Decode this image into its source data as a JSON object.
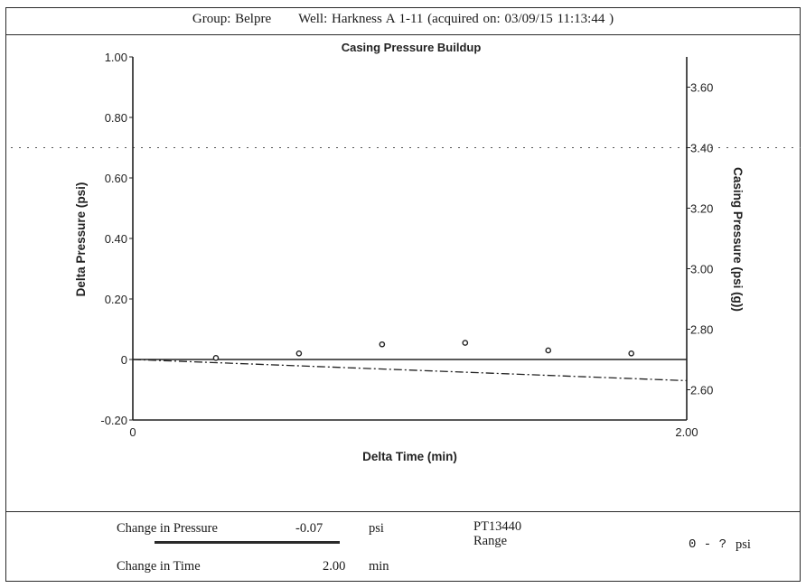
{
  "header": {
    "group": "Group: Belpre",
    "well": "Well: Harkness A 1-11 (acquired on: 03/09/15 11:13:44 )"
  },
  "chart_data": {
    "type": "line",
    "title": "Casing Pressure Buildup",
    "xlabel": "Delta Time (min)",
    "ylabel": "Delta Pressure (psi)",
    "y2label": "Casing Pressure (psi (g))",
    "xlim": [
      0,
      2.0
    ],
    "ylim": [
      -0.2,
      1.0
    ],
    "y2lim": [
      2.5,
      3.7
    ],
    "x_ticks": [
      "0",
      "2.00"
    ],
    "y_ticks": [
      {
        "value": 1.0,
        "label": "1.00"
      },
      {
        "value": 0.8,
        "label": "0.80"
      },
      {
        "value": 0.6,
        "label": "0.60"
      },
      {
        "value": 0.4,
        "label": "0.40"
      },
      {
        "value": 0.2,
        "label": "0.20"
      },
      {
        "value": 0.0,
        "label": "0"
      },
      {
        "value": -0.2,
        "label": "-0.20"
      }
    ],
    "y2_ticks": [
      {
        "value": 3.6,
        "label": "3.60"
      },
      {
        "value": 3.4,
        "label": "3.40"
      },
      {
        "value": 3.2,
        "label": "3.20"
      },
      {
        "value": 3.0,
        "label": "3.00"
      },
      {
        "value": 2.8,
        "label": "2.80"
      },
      {
        "value": 2.6,
        "label": "2.60"
      }
    ],
    "series": [
      {
        "style": "points",
        "x": [
          0.3,
          0.6,
          0.9,
          1.2,
          1.5,
          1.8
        ],
        "y": [
          0.005,
          0.02,
          0.05,
          0.055,
          0.03,
          0.02
        ]
      },
      {
        "style": "trend-line",
        "x": [
          0,
          2.0
        ],
        "y": [
          0.0,
          -0.07
        ]
      }
    ],
    "baseline_y": 0,
    "dotted_reference_y2": 3.4
  },
  "footer": {
    "change_pressure_label": "Change in Pressure",
    "change_pressure_value": "-0.07",
    "change_pressure_unit": "psi",
    "change_time_label": "Change in Time",
    "change_time_value": "2.00",
    "change_time_unit": "min",
    "sensor_id": "PT13440",
    "range_label": "Range",
    "range_value": "0 - ?",
    "range_unit": "psi"
  }
}
